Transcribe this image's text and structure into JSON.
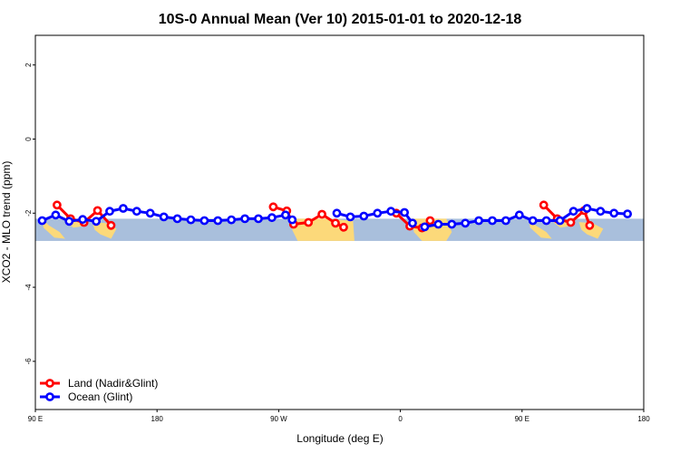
{
  "chart_data": {
    "type": "line",
    "title": "10S-0 Annual Mean (Ver 10)   2015-01-01 to 2020-12-18",
    "xlabel": "Longitude (deg E)",
    "ylabel": "XCO2 - MLO trend (ppm)",
    "xlim": [
      90,
      540
    ],
    "ylim": [
      -7.3,
      2.8
    ],
    "xticks": [
      {
        "value": 90,
        "label": "90 E"
      },
      {
        "value": 180,
        "label": "180"
      },
      {
        "value": 270,
        "label": "90 W"
      },
      {
        "value": 360,
        "label": "0"
      },
      {
        "value": 450,
        "label": "90 E"
      },
      {
        "value": 540,
        "label": "180"
      }
    ],
    "yticks": [
      {
        "value": 2,
        "label": "2"
      },
      {
        "value": 0,
        "label": "0"
      },
      {
        "value": -2,
        "label": "-2"
      },
      {
        "value": -4,
        "label": "-4"
      },
      {
        "value": -6,
        "label": "-6"
      }
    ],
    "grid": false,
    "background_band": {
      "ymin": -2.75,
      "ymax": -2.15,
      "color": "#a9bfdc"
    },
    "land_color": "#fcd97a",
    "legend_position": "bottom-left",
    "series": [
      {
        "name": "Land (Nadir&Glint)",
        "color": "#ff0000",
        "segments": [
          [
            [
              106,
              -1.78
            ],
            [
              116,
              -2.15
            ],
            [
              126,
              -2.25
            ],
            [
              136,
              -1.93
            ],
            [
              146,
              -2.33
            ]
          ],
          [
            [
              266,
              -1.83
            ],
            [
              276,
              -1.94
            ],
            [
              281,
              -2.3
            ],
            [
              292,
              -2.25
            ],
            [
              302,
              -2.03
            ],
            [
              312,
              -2.27
            ],
            [
              318,
              -2.38
            ]
          ],
          [
            [
              357,
              -2.0
            ],
            [
              367,
              -2.35
            ],
            [
              376,
              -2.4
            ],
            [
              382,
              -2.2
            ]
          ],
          [
            [
              466,
              -1.78
            ],
            [
              476,
              -2.15
            ],
            [
              486,
              -2.25
            ],
            [
              496,
              -1.93
            ],
            [
              500,
              -2.33
            ]
          ]
        ]
      },
      {
        "name": "Ocean (Glint)",
        "color": "#0000ff",
        "segments": [
          [
            [
              95,
              -2.2
            ],
            [
              105,
              -2.05
            ],
            [
              115,
              -2.22
            ],
            [
              125,
              -2.17
            ],
            [
              135,
              -2.22
            ],
            [
              145,
              -1.95
            ],
            [
              155,
              -1.87
            ],
            [
              165,
              -1.95
            ],
            [
              175,
              -2.0
            ],
            [
              185,
              -2.1
            ],
            [
              195,
              -2.15
            ],
            [
              205,
              -2.18
            ],
            [
              215,
              -2.2
            ],
            [
              225,
              -2.2
            ],
            [
              235,
              -2.18
            ],
            [
              245,
              -2.15
            ],
            [
              255,
              -2.15
            ],
            [
              265,
              -2.12
            ],
            [
              275,
              -2.05
            ],
            [
              280,
              -2.18
            ]
          ],
          [
            [
              313,
              -2.0
            ],
            [
              323,
              -2.1
            ],
            [
              333,
              -2.08
            ],
            [
              343,
              -2.0
            ],
            [
              353,
              -1.95
            ],
            [
              363,
              -1.98
            ],
            [
              369,
              -2.27
            ]
          ],
          [
            [
              378,
              -2.37
            ],
            [
              388,
              -2.3
            ],
            [
              398,
              -2.3
            ],
            [
              408,
              -2.27
            ],
            [
              418,
              -2.2
            ],
            [
              428,
              -2.2
            ],
            [
              438,
              -2.2
            ],
            [
              448,
              -2.05
            ],
            [
              458,
              -2.2
            ],
            [
              468,
              -2.2
            ],
            [
              478,
              -2.2
            ],
            [
              488,
              -1.95
            ],
            [
              498,
              -1.87
            ],
            [
              508,
              -1.95
            ],
            [
              518,
              -2.0
            ],
            [
              528,
              -2.02
            ]
          ]
        ]
      }
    ]
  }
}
